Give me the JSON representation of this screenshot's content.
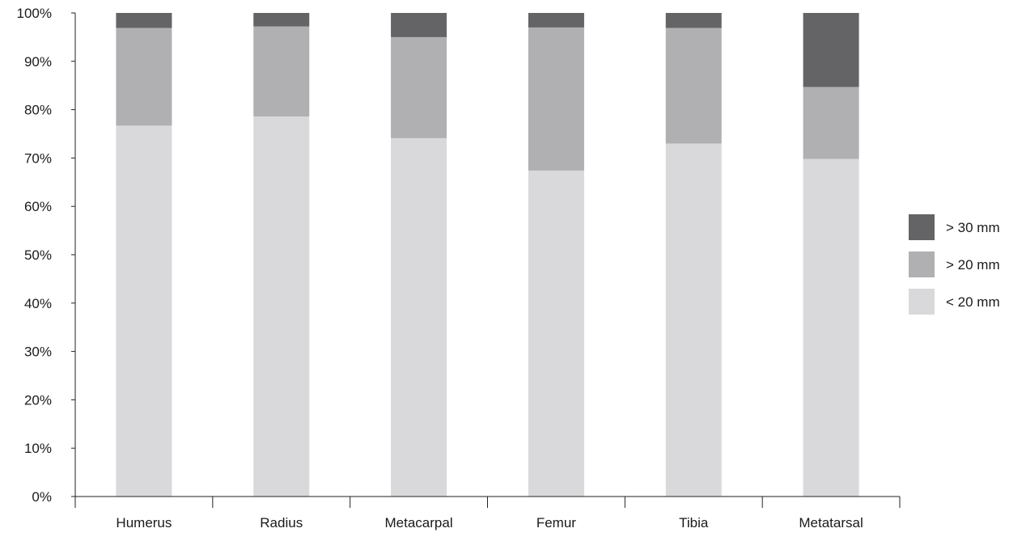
{
  "chart_data": {
    "type": "bar",
    "stacked": true,
    "percent_scale": true,
    "title": "",
    "xlabel": "",
    "ylabel": "",
    "categories": [
      "Humerus",
      "Radius",
      "Metacarpal",
      "Femur",
      "Tibia",
      "Metatarsal"
    ],
    "series": [
      {
        "name": "< 20 mm",
        "color": "#d9d9db",
        "values": [
          76.7,
          78.6,
          74.1,
          67.4,
          73.0,
          69.8
        ]
      },
      {
        "name": "> 20 mm",
        "color": "#b0b0b3",
        "values": [
          20.2,
          18.6,
          20.9,
          29.6,
          23.9,
          14.9
        ]
      },
      {
        "name": "> 30 mm",
        "color": "#646466",
        "values": [
          3.1,
          2.8,
          5.0,
          3.0,
          3.1,
          15.3
        ]
      }
    ],
    "ylim": [
      0,
      100
    ],
    "yticks": [
      "0%",
      "10%",
      "20%",
      "30%",
      "40%",
      "50%",
      "60%",
      "70%",
      "80%",
      "90%",
      "100%"
    ],
    "legend": {
      "position": "right",
      "order": [
        "> 30 mm",
        "> 20 mm",
        "< 20 mm"
      ]
    },
    "grid": false
  }
}
